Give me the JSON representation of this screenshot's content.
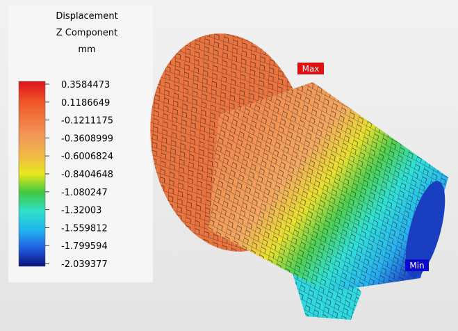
{
  "legend": {
    "title_lines": [
      "Displacement",
      "Z Component",
      "mm"
    ],
    "tick_labels": [
      "0.3584473",
      "0.1186649",
      "-0.1211175",
      "-0.3608999",
      "-0.6006824",
      "-0.8404648",
      "-1.080247",
      "-1.32003",
      "-1.559812",
      "-1.799594",
      "-2.039377"
    ]
  },
  "markers": {
    "max": "Max",
    "min": "Min"
  }
}
